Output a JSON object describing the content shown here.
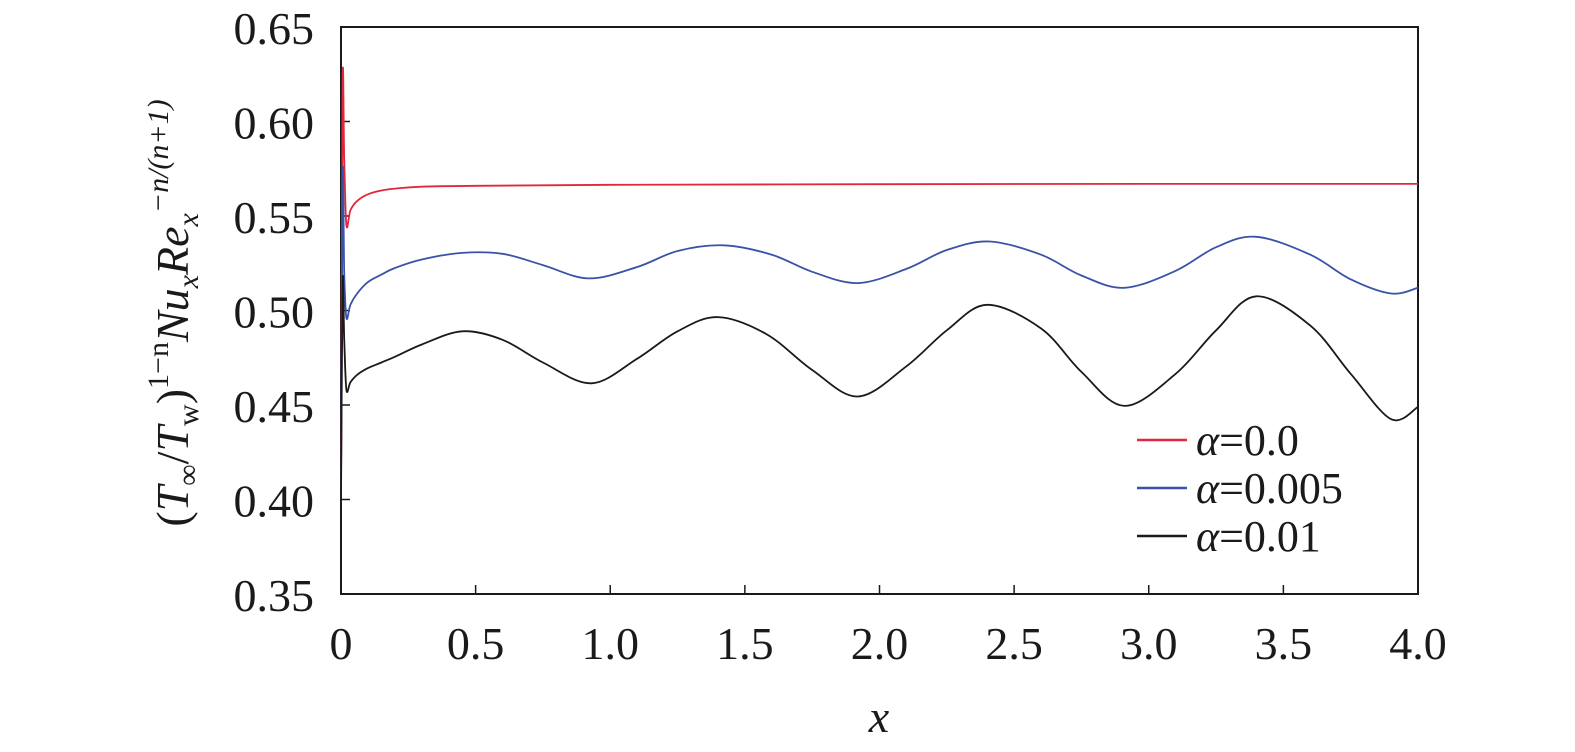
{
  "chart_data": {
    "type": "line",
    "xlabel": "x",
    "ylabel": {
      "open_paren": "(",
      "T1": "T",
      "sub_inf": "∞",
      "slash": "/",
      "T2": "T",
      "sub_w": "w",
      "close_paren": ")",
      "exp1": "1−n",
      "Nu": "Nu",
      "sub_x1": "x",
      "Re": "Re",
      "sub_x2": "x",
      "exp2": "−n/(n+1)"
    },
    "xlim": [
      0,
      4.0
    ],
    "ylim": [
      0.35,
      0.65
    ],
    "xticks": [
      0,
      0.5,
      1.0,
      1.5,
      2.0,
      2.5,
      3.0,
      3.5,
      4.0
    ],
    "xtick_labels": [
      "0",
      "0.5",
      "1.0",
      "1.5",
      "2.0",
      "2.5",
      "3.0",
      "3.5",
      "4.0"
    ],
    "yticks": [
      0.35,
      0.4,
      0.45,
      0.5,
      0.55,
      0.6,
      0.65
    ],
    "ytick_labels": [
      "0.35",
      "0.40",
      "0.45",
      "0.50",
      "0.55",
      "0.60",
      "0.65"
    ],
    "grid": false,
    "legend_position": "bottom-right",
    "series": [
      {
        "name": "α=0.0",
        "color": "#e0283c",
        "points": [
          [
            0.0,
            0.4
          ],
          [
            0.006,
            0.62
          ],
          [
            0.012,
            0.58
          ],
          [
            0.02,
            0.545
          ],
          [
            0.035,
            0.553
          ],
          [
            0.06,
            0.558
          ],
          [
            0.1,
            0.5615
          ],
          [
            0.15,
            0.5635
          ],
          [
            0.2,
            0.5645
          ],
          [
            0.3,
            0.5655
          ],
          [
            0.5,
            0.566
          ],
          [
            1.0,
            0.5665
          ],
          [
            2.0,
            0.5668
          ],
          [
            3.0,
            0.567
          ],
          [
            4.0,
            0.567
          ]
        ]
      },
      {
        "name": "α=0.005",
        "color": "#3a52a8",
        "points": [
          [
            0.0,
            0.4
          ],
          [
            0.006,
            0.572
          ],
          [
            0.012,
            0.52
          ],
          [
            0.02,
            0.496
          ],
          [
            0.035,
            0.503
          ],
          [
            0.06,
            0.509
          ],
          [
            0.1,
            0.515
          ],
          [
            0.15,
            0.519
          ],
          [
            0.2,
            0.5225
          ],
          [
            0.3,
            0.527
          ],
          [
            0.45,
            0.5305
          ],
          [
            0.6,
            0.53
          ],
          [
            0.75,
            0.524
          ],
          [
            0.92,
            0.517
          ],
          [
            1.1,
            0.523
          ],
          [
            1.25,
            0.5315
          ],
          [
            1.42,
            0.5345
          ],
          [
            1.6,
            0.5295
          ],
          [
            1.75,
            0.5205
          ],
          [
            1.92,
            0.5145
          ],
          [
            2.1,
            0.522
          ],
          [
            2.25,
            0.532
          ],
          [
            2.41,
            0.5365
          ],
          [
            2.6,
            0.5295
          ],
          [
            2.75,
            0.5185
          ],
          [
            2.91,
            0.512
          ],
          [
            3.1,
            0.521
          ],
          [
            3.25,
            0.5335
          ],
          [
            3.4,
            0.539
          ],
          [
            3.6,
            0.5295
          ],
          [
            3.75,
            0.5165
          ],
          [
            3.9,
            0.509
          ],
          [
            4.0,
            0.512
          ]
        ]
      },
      {
        "name": "α=0.01",
        "color": "#1a1a1a",
        "points": [
          [
            0.0,
            0.4
          ],
          [
            0.006,
            0.515
          ],
          [
            0.012,
            0.485
          ],
          [
            0.02,
            0.458
          ],
          [
            0.035,
            0.462
          ],
          [
            0.06,
            0.466
          ],
          [
            0.1,
            0.4695
          ],
          [
            0.15,
            0.4725
          ],
          [
            0.2,
            0.4755
          ],
          [
            0.3,
            0.482
          ],
          [
            0.45,
            0.489
          ],
          [
            0.6,
            0.4845
          ],
          [
            0.75,
            0.4725
          ],
          [
            0.93,
            0.4615
          ],
          [
            1.1,
            0.4745
          ],
          [
            1.25,
            0.489
          ],
          [
            1.4,
            0.4965
          ],
          [
            1.58,
            0.4875
          ],
          [
            1.75,
            0.4685
          ],
          [
            1.92,
            0.4545
          ],
          [
            2.1,
            0.4705
          ],
          [
            2.25,
            0.4895
          ],
          [
            2.4,
            0.503
          ],
          [
            2.6,
            0.4905
          ],
          [
            2.75,
            0.4675
          ],
          [
            2.91,
            0.4495
          ],
          [
            3.1,
            0.4665
          ],
          [
            3.25,
            0.4895
          ],
          [
            3.4,
            0.5075
          ],
          [
            3.6,
            0.492
          ],
          [
            3.75,
            0.4665
          ],
          [
            3.9,
            0.4425
          ],
          [
            4.0,
            0.449
          ]
        ]
      }
    ]
  }
}
